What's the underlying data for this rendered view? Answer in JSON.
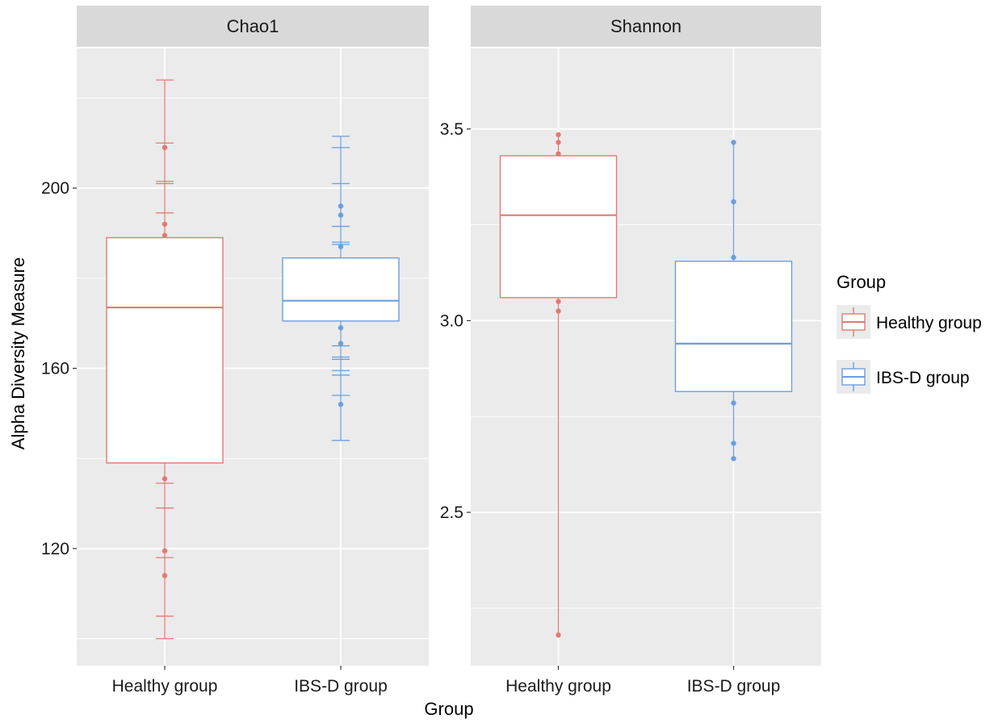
{
  "figure": {
    "xlabel": "Group",
    "ylabel": "Alpha Diversity Measure"
  },
  "legend": {
    "title": "Group",
    "placement": "right",
    "items": [
      {
        "label": "Healthy group",
        "color": "#E07B73"
      },
      {
        "label": "IBS-D group",
        "color": "#6A9FDB"
      }
    ]
  },
  "colors": {
    "panel_bg": "#EBEBEB",
    "strip_bg": "#D9D9D9",
    "grid": "#FFFFFF",
    "healthy": "#E07B73",
    "ibsd": "#6A9FDB"
  },
  "chart_data": [
    {
      "type": "box",
      "facet": "Chao1",
      "categories": [
        "Healthy group",
        "IBS-D group"
      ],
      "ylim": [
        94,
        231
      ],
      "yticks": [
        120,
        160,
        200
      ],
      "grid": true,
      "series": [
        {
          "name": "Healthy group",
          "category": "Healthy group",
          "color": "#E07B73",
          "box": {
            "q1": 139,
            "median": 173.5,
            "q3": 189
          },
          "points": [
            209,
            192,
            189.5,
            135.5,
            119.5,
            114
          ],
          "error_ticks": [
            224,
            210,
            201.5,
            201,
            194.5,
            134.5,
            129,
            118,
            105,
            100
          ]
        },
        {
          "name": "IBS-D group",
          "category": "IBS-D group",
          "color": "#6A9FDB",
          "box": {
            "q1": 170.5,
            "median": 175,
            "q3": 184.5
          },
          "points": [
            196,
            194,
            187,
            169,
            165.5,
            152
          ],
          "error_ticks": [
            211.5,
            209,
            201,
            191.5,
            188,
            187.5,
            165,
            162.5,
            162,
            159.5,
            158.5,
            154,
            144
          ]
        }
      ]
    },
    {
      "type": "box",
      "facet": "Shannon",
      "categories": [
        "Healthy group",
        "IBS-D group"
      ],
      "ylim": [
        2.1,
        3.71
      ],
      "yticks": [
        2.5,
        3.0,
        3.5
      ],
      "grid": true,
      "series": [
        {
          "name": "Healthy group",
          "category": "Healthy group",
          "color": "#E07B73",
          "box": {
            "q1": 3.06,
            "median": 3.275,
            "q3": 3.43
          },
          "points": [
            3.485,
            3.465,
            3.435,
            3.05,
            3.025,
            2.18
          ],
          "error_ticks": []
        },
        {
          "name": "IBS-D group",
          "category": "IBS-D group",
          "color": "#6A9FDB",
          "box": {
            "q1": 2.815,
            "median": 2.94,
            "q3": 3.155
          },
          "points": [
            3.465,
            3.31,
            3.165,
            2.785,
            2.68,
            2.64
          ],
          "error_ticks": []
        }
      ]
    }
  ]
}
